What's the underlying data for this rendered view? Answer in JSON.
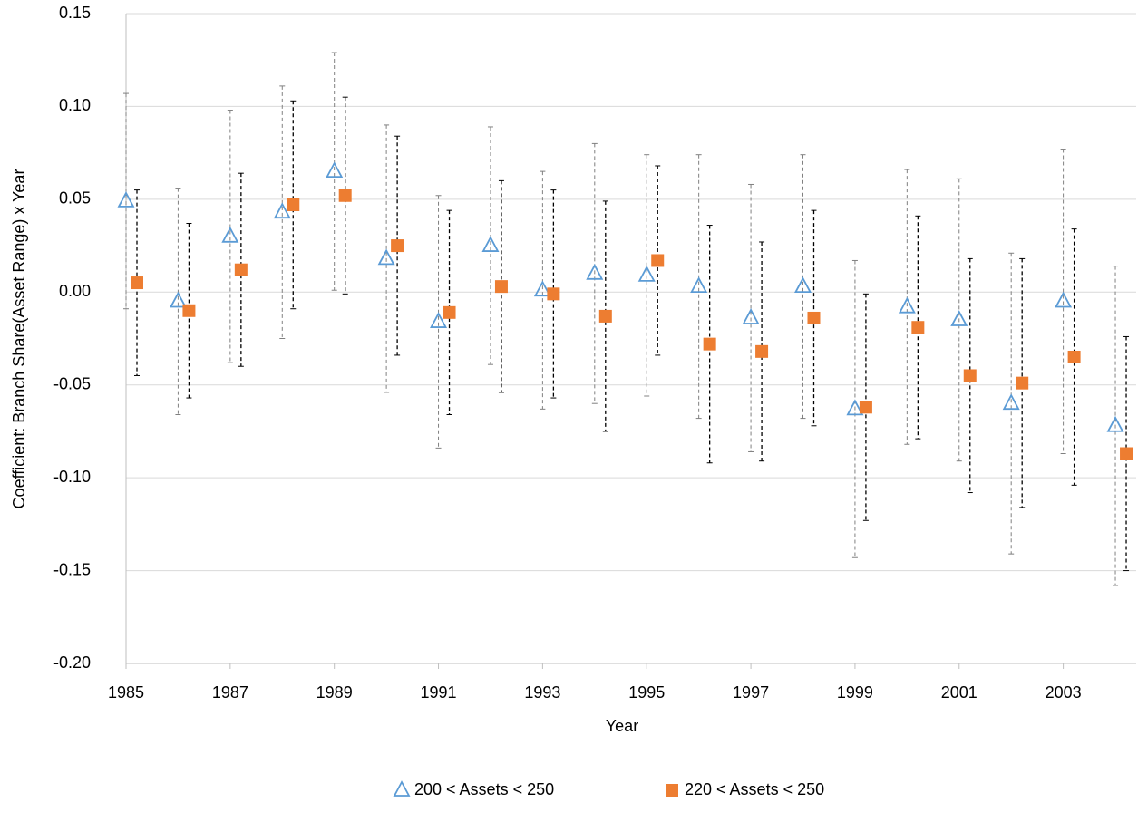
{
  "chart_data": {
    "type": "scatter",
    "xlabel": "Year",
    "ylabel": "Coefficient:  Branch Share(Asset Range) x Year",
    "x": [
      1985,
      1986,
      1987,
      1988,
      1989,
      1990,
      1991,
      1992,
      1993,
      1994,
      1995,
      1996,
      1997,
      1998,
      1999,
      2000,
      2001,
      2002,
      2003,
      2004
    ],
    "xlim": [
      1985,
      2004.4
    ],
    "xticks": [
      1985,
      1987,
      1989,
      1991,
      1993,
      1995,
      1997,
      1999,
      2001,
      2003
    ],
    "ylim": [
      -0.2,
      0.15
    ],
    "yticks": [
      {
        "value": -0.2,
        "label": "-0.20"
      },
      {
        "value": -0.15,
        "label": "-0.15"
      },
      {
        "value": -0.1,
        "label": "-0.10"
      },
      {
        "value": -0.05,
        "label": "-0.05"
      },
      {
        "value": 0,
        "label": "0.00"
      },
      {
        "value": 0.05,
        "label": "0.05"
      },
      {
        "value": 0.1,
        "label": "0.10"
      },
      {
        "value": 0.15,
        "label": "0.15"
      }
    ],
    "grid": true,
    "legend": "bottom",
    "series": [
      {
        "name": "200 < Assets < 250",
        "color": "#5b9bd5",
        "marker": "triangle",
        "error_color": "#808080",
        "values": [
          0.049,
          -0.005,
          0.03,
          0.043,
          0.065,
          0.018,
          -0.016,
          0.025,
          0.001,
          0.01,
          0.009,
          0.003,
          -0.014,
          0.003,
          -0.063,
          -0.008,
          -0.015,
          -0.06,
          -0.005,
          -0.072
        ],
        "errors": [
          0.058,
          0.061,
          0.068,
          0.068,
          0.064,
          0.072,
          0.068,
          0.064,
          0.064,
          0.07,
          0.065,
          0.071,
          0.072,
          0.071,
          0.08,
          0.074,
          0.076,
          0.081,
          0.082,
          0.086
        ]
      },
      {
        "name": "220 < Assets < 250",
        "color": "#ed7d31",
        "marker": "square",
        "error_color": "#000000",
        "values": [
          0.005,
          -0.01,
          0.012,
          0.047,
          0.052,
          0.025,
          -0.011,
          0.003,
          -0.001,
          -0.013,
          0.017,
          -0.028,
          -0.032,
          -0.014,
          -0.062,
          -0.019,
          -0.045,
          -0.049,
          -0.035,
          -0.087
        ],
        "errors": [
          0.05,
          0.047,
          0.052,
          0.056,
          0.053,
          0.059,
          0.055,
          0.057,
          0.056,
          0.062,
          0.051,
          0.064,
          0.059,
          0.058,
          0.061,
          0.06,
          0.063,
          0.067,
          0.069,
          0.063
        ]
      }
    ]
  }
}
